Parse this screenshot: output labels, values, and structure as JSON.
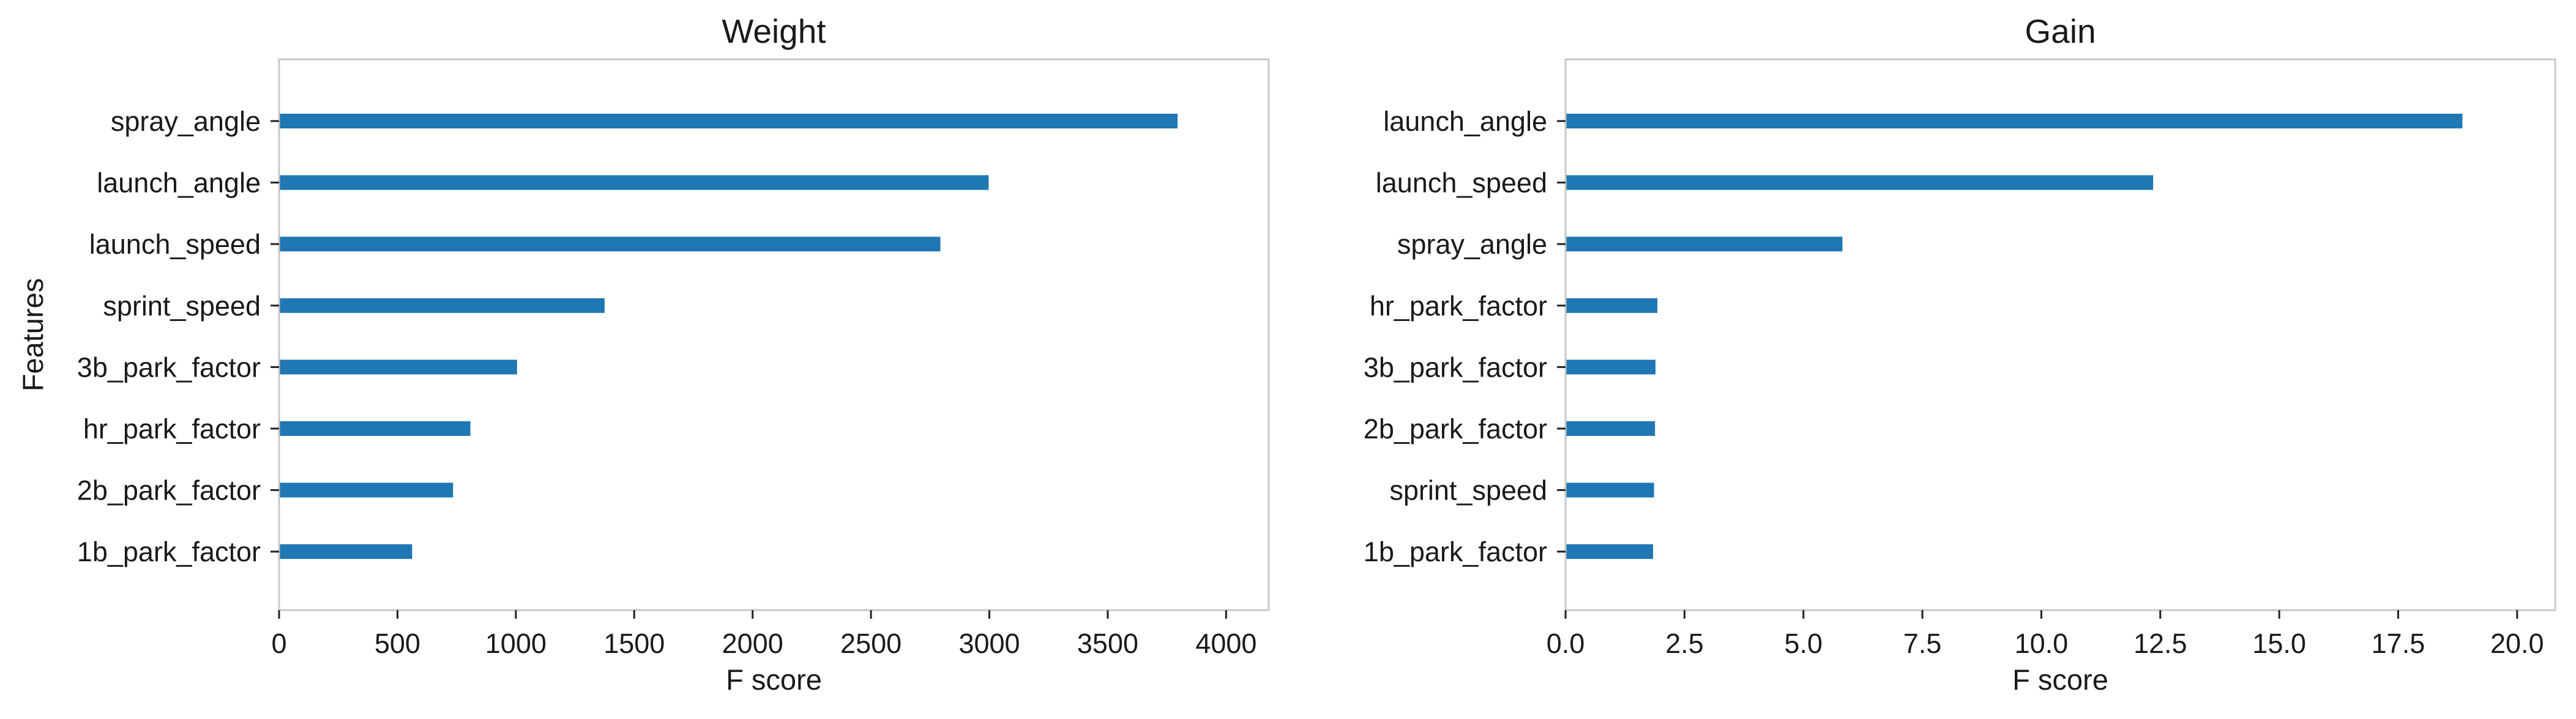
{
  "colors": {
    "bar": "#1f77b4",
    "frame": "#c8c8c8",
    "tick": "#222222"
  },
  "chart_data": [
    {
      "type": "bar",
      "orientation": "horizontal",
      "title": "Weight",
      "xlabel": "F score",
      "ylabel": "Features",
      "xlim": [
        0,
        4180
      ],
      "xticks": [
        0,
        500,
        1000,
        1500,
        2000,
        2500,
        3000,
        3500,
        4000
      ],
      "xtick_labels": [
        "0",
        "500",
        "1000",
        "1500",
        "2000",
        "2500",
        "3000",
        "3500",
        "4000"
      ],
      "grid": false,
      "categories": [
        "spray_angle",
        "launch_angle",
        "launch_speed",
        "sprint_speed",
        "3b_park_factor",
        "hr_park_factor",
        "2b_park_factor",
        "1b_park_factor"
      ],
      "values": [
        3795,
        2997,
        2793,
        1375,
        1005,
        808,
        735,
        562
      ]
    },
    {
      "type": "bar",
      "orientation": "horizontal",
      "title": "Gain",
      "xlabel": "F score",
      "ylabel": "",
      "xlim": [
        0,
        20.8
      ],
      "xticks": [
        0,
        2.5,
        5,
        7.5,
        10,
        12.5,
        15,
        17.5,
        20
      ],
      "xtick_labels": [
        "0.0",
        "2.5",
        "5.0",
        "7.5",
        "10.0",
        "12.5",
        "15.0",
        "17.5",
        "20.0"
      ],
      "grid": false,
      "categories": [
        "launch_angle",
        "launch_speed",
        "spray_angle",
        "hr_park_factor",
        "3b_park_factor",
        "2b_park_factor",
        "sprint_speed",
        "1b_park_factor"
      ],
      "values": [
        18.85,
        12.35,
        5.82,
        1.93,
        1.89,
        1.88,
        1.86,
        1.84
      ]
    }
  ]
}
